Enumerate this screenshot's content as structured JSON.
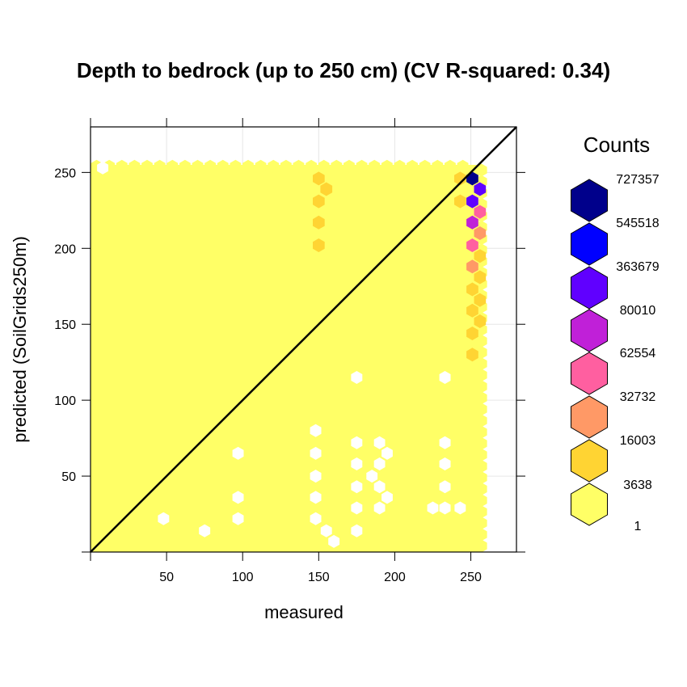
{
  "chart_data": {
    "type": "hexbin",
    "title": "Depth to bedrock (up to 250 cm)  (CV R-squared: 0.34)",
    "xlabel": "measured",
    "ylabel": "predicted (SoilGrids250m)",
    "xlim": [
      0,
      280
    ],
    "ylim": [
      0,
      280
    ],
    "x_ticks": [
      50,
      100,
      150,
      200,
      250
    ],
    "y_ticks": [
      50,
      100,
      150,
      200,
      250
    ],
    "grid": true,
    "reference_line": "1:1",
    "legend": {
      "title": "Counts",
      "position": "right",
      "levels": [
        {
          "label": "727357",
          "color": "#00008B"
        },
        {
          "label": "545518",
          "color": "#0000FF"
        },
        {
          "label": "363679",
          "color": "#6000FF"
        },
        {
          "label": "80010",
          "color": "#C020D8"
        },
        {
          "label": "62554",
          "color": "#FF5FA0"
        },
        {
          "label": "32732",
          "color": "#FF9966"
        },
        {
          "label": "16003",
          "color": "#FFD433"
        },
        {
          "label": "3638",
          "color": "#FFFF66"
        },
        {
          "label": "1",
          "color": ""
        }
      ]
    },
    "fill_region": [
      [
        0,
        0
      ],
      [
        0,
        255
      ],
      [
        255,
        255
      ],
      [
        258,
        0
      ]
    ],
    "empty_cells": [
      [
        8,
        253
      ],
      [
        175,
        115
      ],
      [
        233,
        115
      ],
      [
        97,
        65
      ],
      [
        148,
        80
      ],
      [
        148,
        65
      ],
      [
        148,
        50
      ],
      [
        148,
        36
      ],
      [
        148,
        22
      ],
      [
        175,
        72
      ],
      [
        175,
        58
      ],
      [
        175,
        43
      ],
      [
        175,
        29
      ],
      [
        190,
        72
      ],
      [
        195,
        65
      ],
      [
        190,
        58
      ],
      [
        185,
        50
      ],
      [
        190,
        43
      ],
      [
        195,
        36
      ],
      [
        190,
        29
      ],
      [
        233,
        72
      ],
      [
        233,
        58
      ],
      [
        233,
        43
      ],
      [
        233,
        29
      ],
      [
        48,
        22
      ],
      [
        97,
        36
      ],
      [
        97,
        22
      ],
      [
        75,
        14
      ],
      [
        155,
        14
      ],
      [
        160,
        7
      ],
      [
        175,
        14
      ],
      [
        225,
        29
      ],
      [
        243,
        29
      ]
    ],
    "hexes": [
      {
        "x": 251,
        "y": 246,
        "level": 0
      },
      {
        "x": 256,
        "y": 239,
        "level": 2
      },
      {
        "x": 251,
        "y": 231,
        "level": 2
      },
      {
        "x": 256,
        "y": 224,
        "level": 4
      },
      {
        "x": 251,
        "y": 217,
        "level": 3
      },
      {
        "x": 256,
        "y": 210,
        "level": 5
      },
      {
        "x": 251,
        "y": 202,
        "level": 4
      },
      {
        "x": 256,
        "y": 195,
        "level": 6
      },
      {
        "x": 251,
        "y": 188,
        "level": 5
      },
      {
        "x": 256,
        "y": 181,
        "level": 6
      },
      {
        "x": 251,
        "y": 173,
        "level": 6
      },
      {
        "x": 256,
        "y": 166,
        "level": 6
      },
      {
        "x": 251,
        "y": 159,
        "level": 6
      },
      {
        "x": 256,
        "y": 152,
        "level": 6
      },
      {
        "x": 251,
        "y": 144,
        "level": 6
      },
      {
        "x": 251,
        "y": 130,
        "level": 6
      },
      {
        "x": 243,
        "y": 246,
        "level": 6
      },
      {
        "x": 243,
        "y": 231,
        "level": 6
      },
      {
        "x": 150,
        "y": 246,
        "level": 6
      },
      {
        "x": 155,
        "y": 239,
        "level": 6
      },
      {
        "x": 150,
        "y": 231,
        "level": 6
      },
      {
        "x": 150,
        "y": 217,
        "level": 6
      },
      {
        "x": 150,
        "y": 202,
        "level": 6
      }
    ]
  }
}
